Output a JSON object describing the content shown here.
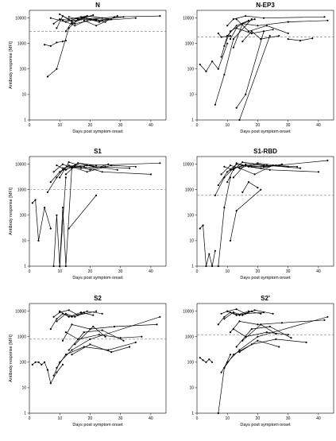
{
  "chart_data": [
    {
      "type": "line",
      "title": "N",
      "xlabel": "Days post symptom onset",
      "ylabel": "Antibody response [MFI]",
      "xlim": [
        0,
        45
      ],
      "ylim": [
        1,
        20000
      ],
      "yscale": "log",
      "xticks": [
        0,
        10,
        20,
        30,
        40
      ],
      "yticks": [
        1,
        10,
        100,
        1000,
        10000
      ],
      "cutoff": 3000,
      "series": [
        {
          "x": [
            5,
            7,
            9,
            11,
            12
          ],
          "y": [
            900,
            800,
            1100,
            1200,
            1300
          ]
        },
        {
          "x": [
            6,
            9,
            13,
            16
          ],
          "y": [
            50,
            100,
            4000,
            9000
          ]
        },
        {
          "x": [
            8,
            10,
            14,
            20,
            28,
            43
          ],
          "y": [
            6000,
            9000,
            8000,
            9000,
            11000,
            12000
          ]
        },
        {
          "x": [
            7,
            12,
            17,
            24,
            35
          ],
          "y": [
            10000,
            7000,
            11000,
            8000,
            10000
          ]
        },
        {
          "x": [
            9,
            11,
            15,
            22
          ],
          "y": [
            4000,
            12000,
            6000,
            9000
          ]
        },
        {
          "x": [
            10,
            13,
            19,
            27
          ],
          "y": [
            14000,
            9000,
            12000,
            9000
          ]
        },
        {
          "x": [
            12,
            14,
            18,
            22,
            31
          ],
          "y": [
            3000,
            7000,
            10000,
            8000,
            11000
          ]
        },
        {
          "x": [
            11,
            15,
            20,
            25
          ],
          "y": [
            8000,
            5000,
            9000,
            7000
          ]
        },
        {
          "x": [
            13,
            16,
            21
          ],
          "y": [
            11000,
            9000,
            13000
          ]
        },
        {
          "x": [
            14,
            18,
            23,
            26
          ],
          "y": [
            6000,
            10000,
            7000,
            9000
          ]
        },
        {
          "x": [
            16,
            19,
            24
          ],
          "y": [
            9000,
            12000,
            10000
          ]
        },
        {
          "x": [
            18,
            22,
            29
          ],
          "y": [
            8000,
            5000,
            12000
          ]
        }
      ]
    },
    {
      "type": "line",
      "title": "N-EP3",
      "xlabel": "Days post symptom onset",
      "ylabel": "",
      "xlim": [
        0,
        45
      ],
      "ylim": [
        1,
        20000
      ],
      "yscale": "log",
      "xticks": [
        0,
        10,
        20,
        30,
        40
      ],
      "yticks": [
        1,
        10,
        100,
        1000,
        10000
      ],
      "cutoff": 1800,
      "series": [
        {
          "x": [
            1,
            3,
            5,
            7,
            10
          ],
          "y": [
            150,
            80,
            200,
            100,
            1000
          ]
        },
        {
          "x": [
            6,
            9,
            12,
            18
          ],
          "y": [
            4,
            60,
            1500,
            9000
          ]
        },
        {
          "x": [
            13,
            16,
            22
          ],
          "y": [
            3,
            10,
            3000
          ]
        },
        {
          "x": [
            14,
            24
          ],
          "y": [
            1,
            2000
          ]
        },
        {
          "x": [
            8,
            10,
            13,
            17
          ],
          "y": [
            300,
            2000,
            5000,
            8000
          ]
        },
        {
          "x": [
            9,
            11,
            15,
            20,
            30,
            43
          ],
          "y": [
            800,
            3000,
            6000,
            5000,
            7000,
            8000
          ]
        },
        {
          "x": [
            10,
            12,
            16,
            22,
            42
          ],
          "y": [
            5000,
            9000,
            12000,
            10000,
            11000
          ]
        },
        {
          "x": [
            11,
            13,
            18,
            25
          ],
          "y": [
            1500,
            4000,
            2500,
            3500
          ]
        },
        {
          "x": [
            12,
            15,
            19
          ],
          "y": [
            700,
            6000,
            9000
          ]
        },
        {
          "x": [
            13,
            17,
            23,
            30
          ],
          "y": [
            9000,
            3000,
            5000,
            2500
          ]
        },
        {
          "x": [
            7,
            8,
            11
          ],
          "y": [
            2500,
            1800,
            2000
          ]
        },
        {
          "x": [
            15,
            18,
            21,
            27
          ],
          "y": [
            1200,
            3000,
            1500,
            2000
          ]
        },
        {
          "x": [
            30,
            34,
            38
          ],
          "y": [
            1500,
            1300,
            1600
          ]
        }
      ]
    },
    {
      "type": "line",
      "title": "S1",
      "xlabel": "Days post symptom onset",
      "ylabel": "Antibody response [MFI]",
      "xlim": [
        0,
        45
      ],
      "ylim": [
        1,
        20000
      ],
      "yscale": "log",
      "xticks": [
        0,
        10,
        20,
        30,
        40
      ],
      "yticks": [
        1,
        10,
        100,
        1000,
        10000
      ],
      "cutoff": 1000,
      "series": [
        {
          "x": [
            1,
            2,
            3,
            5,
            7
          ],
          "y": [
            300,
            400,
            10,
            200,
            30
          ]
        },
        {
          "x": [
            8,
            9,
            10,
            12
          ],
          "y": [
            1,
            100,
            1,
            3000
          ]
        },
        {
          "x": [
            10,
            11,
            12,
            14
          ],
          "y": [
            1,
            200,
            1,
            8000
          ]
        },
        {
          "x": [
            13,
            22
          ],
          "y": [
            30,
            600
          ]
        },
        {
          "x": [
            6,
            9,
            11,
            15,
            20,
            43
          ],
          "y": [
            800,
            3000,
            6000,
            8000,
            9000,
            11000
          ]
        },
        {
          "x": [
            7,
            10,
            13,
            17,
            25
          ],
          "y": [
            2000,
            5000,
            9000,
            7000,
            8000
          ]
        },
        {
          "x": [
            8,
            11,
            14,
            19,
            29
          ],
          "y": [
            5000,
            10000,
            7000,
            9000,
            6000
          ]
        },
        {
          "x": [
            9,
            12,
            16,
            21,
            33
          ],
          "y": [
            9000,
            6000,
            11000,
            8000,
            7000
          ]
        },
        {
          "x": [
            10,
            13,
            18,
            24,
            40
          ],
          "y": [
            3000,
            12000,
            8000,
            5000,
            4000
          ]
        },
        {
          "x": [
            11,
            15,
            20,
            26
          ],
          "y": [
            7000,
            9000,
            6000,
            10000
          ]
        },
        {
          "x": [
            12,
            16,
            22
          ],
          "y": [
            4000,
            11000,
            9000
          ]
        },
        {
          "x": [
            14,
            19,
            27,
            35
          ],
          "y": [
            8000,
            5000,
            9000,
            8000
          ]
        }
      ]
    },
    {
      "type": "line",
      "title": "S1-RBD",
      "xlabel": "Days post symptom onset",
      "ylabel": "",
      "xlim": [
        0,
        45
      ],
      "ylim": [
        1,
        20000
      ],
      "yscale": "log",
      "xticks": [
        0,
        10,
        20,
        30,
        40
      ],
      "yticks": [
        1,
        10,
        100,
        1000,
        10000
      ],
      "cutoff": 600,
      "series": [
        {
          "x": [
            1,
            2,
            3,
            4,
            5,
            6
          ],
          "y": [
            30,
            40,
            1,
            3,
            1,
            4
          ]
        },
        {
          "x": [
            7,
            9,
            11
          ],
          "y": [
            1,
            200,
            3000
          ]
        },
        {
          "x": [
            11,
            13,
            21
          ],
          "y": [
            10,
            150,
            1000
          ]
        },
        {
          "x": [
            6,
            9,
            12,
            16,
            22,
            43
          ],
          "y": [
            600,
            3000,
            7000,
            9000,
            8000,
            14000
          ]
        },
        {
          "x": [
            7,
            10,
            13,
            18,
            26
          ],
          "y": [
            1500,
            5000,
            10000,
            8000,
            9000
          ]
        },
        {
          "x": [
            8,
            11,
            14,
            20,
            30
          ],
          "y": [
            4000,
            9000,
            7000,
            11000,
            8000
          ]
        },
        {
          "x": [
            9,
            12,
            15,
            23,
            34
          ],
          "y": [
            8000,
            6000,
            12000,
            9000,
            7000
          ]
        },
        {
          "x": [
            10,
            13,
            17,
            24,
            40
          ],
          "y": [
            2000,
            11000,
            8000,
            6000,
            5000
          ]
        },
        {
          "x": [
            11,
            15,
            21,
            28
          ],
          "y": [
            6000,
            9000,
            7000,
            10000
          ]
        },
        {
          "x": [
            12,
            16,
            22
          ],
          "y": [
            3000,
            10000,
            9000
          ]
        },
        {
          "x": [
            14,
            19,
            25,
            33
          ],
          "y": [
            7000,
            4000,
            9000,
            8000
          ]
        },
        {
          "x": [
            15,
            17,
            20
          ],
          "y": [
            800,
            2000,
            1200
          ]
        }
      ]
    },
    {
      "type": "line",
      "title": "S2",
      "xlabel": "Days post symptom onset",
      "ylabel": "Antibody response [MFI]",
      "xlim": [
        0,
        45
      ],
      "ylim": [
        1,
        20000
      ],
      "yscale": "log",
      "xticks": [
        0,
        10,
        20,
        30,
        40
      ],
      "yticks": [
        1,
        10,
        100,
        1000,
        10000
      ],
      "cutoff": 800,
      "series": [
        {
          "x": [
            1,
            2,
            3,
            4,
            5,
            6
          ],
          "y": [
            80,
            100,
            100,
            80,
            100,
            50
          ]
        },
        {
          "x": [
            6,
            7,
            9,
            11
          ],
          "y": [
            50,
            15,
            40,
            80
          ]
        },
        {
          "x": [
            8,
            10,
            14,
            20,
            43
          ],
          "y": [
            30,
            100,
            300,
            800,
            6000
          ]
        },
        {
          "x": [
            9,
            12,
            18,
            26,
            35
          ],
          "y": [
            60,
            200,
            400,
            300,
            600
          ]
        },
        {
          "x": [
            7,
            9,
            11,
            14,
            18
          ],
          "y": [
            2000,
            5000,
            8000,
            6000,
            9000
          ]
        },
        {
          "x": [
            8,
            10,
            13,
            16,
            22
          ],
          "y": [
            6000,
            9000,
            11000,
            7000,
            10000
          ]
        },
        {
          "x": [
            9,
            12,
            15,
            19,
            24
          ],
          "y": [
            4000,
            8000,
            6000,
            10000,
            8000
          ]
        },
        {
          "x": [
            10,
            13,
            17,
            21
          ],
          "y": [
            10000,
            6000,
            9000,
            7000
          ]
        },
        {
          "x": [
            11,
            14,
            20,
            28,
            42
          ],
          "y": [
            700,
            3000,
            2000,
            2500,
            3000
          ]
        },
        {
          "x": [
            12,
            16,
            23,
            30,
            37
          ],
          "y": [
            1500,
            800,
            1200,
            900,
            1000
          ]
        },
        {
          "x": [
            13,
            18,
            24,
            31
          ],
          "y": [
            300,
            1500,
            1800,
            700
          ]
        },
        {
          "x": [
            14,
            20,
            27,
            33
          ],
          "y": [
            200,
            500,
            250,
            400
          ]
        },
        {
          "x": [
            15,
            21,
            25
          ],
          "y": [
            500,
            2500,
            1000
          ]
        }
      ]
    },
    {
      "type": "line",
      "title": "S2'",
      "xlabel": "Days post symptom onset",
      "ylabel": "",
      "xlim": [
        0,
        45
      ],
      "ylim": [
        1,
        20000
      ],
      "yscale": "log",
      "xticks": [
        0,
        10,
        20,
        30,
        40
      ],
      "yticks": [
        1,
        10,
        100,
        1000,
        10000
      ],
      "cutoff": 1200,
      "series": [
        {
          "x": [
            1,
            2,
            3,
            4,
            5
          ],
          "y": [
            150,
            120,
            100,
            130,
            100
          ]
        },
        {
          "x": [
            7,
            9,
            11
          ],
          "y": [
            1,
            60,
            200
          ]
        },
        {
          "x": [
            8,
            10,
            14,
            20,
            43
          ],
          "y": [
            40,
            100,
            300,
            1000,
            6000
          ]
        },
        {
          "x": [
            9,
            12,
            18,
            26,
            36
          ],
          "y": [
            60,
            200,
            500,
            800,
            600
          ]
        },
        {
          "x": [
            7,
            9,
            11,
            14,
            18
          ],
          "y": [
            3000,
            6000,
            9000,
            7000,
            10000
          ]
        },
        {
          "x": [
            8,
            10,
            13,
            16,
            22
          ],
          "y": [
            8000,
            10000,
            12000,
            8000,
            9000
          ]
        },
        {
          "x": [
            9,
            12,
            15,
            19,
            25
          ],
          "y": [
            5000,
            9000,
            7000,
            11000,
            8000
          ]
        },
        {
          "x": [
            10,
            13,
            17,
            21
          ],
          "y": [
            10000,
            7000,
            10000,
            8000
          ]
        },
        {
          "x": [
            11,
            14,
            20,
            28,
            42
          ],
          "y": [
            1500,
            4000,
            3000,
            3500,
            4500
          ]
        },
        {
          "x": [
            12,
            16,
            23,
            30
          ],
          "y": [
            2000,
            1000,
            1500,
            1200
          ]
        },
        {
          "x": [
            13,
            18,
            24,
            31
          ],
          "y": [
            400,
            2000,
            2500,
            900
          ]
        },
        {
          "x": [
            14,
            20,
            27
          ],
          "y": [
            250,
            700,
            400
          ]
        },
        {
          "x": [
            15,
            21,
            26
          ],
          "y": [
            700,
            3000,
            1300
          ]
        }
      ]
    }
  ]
}
